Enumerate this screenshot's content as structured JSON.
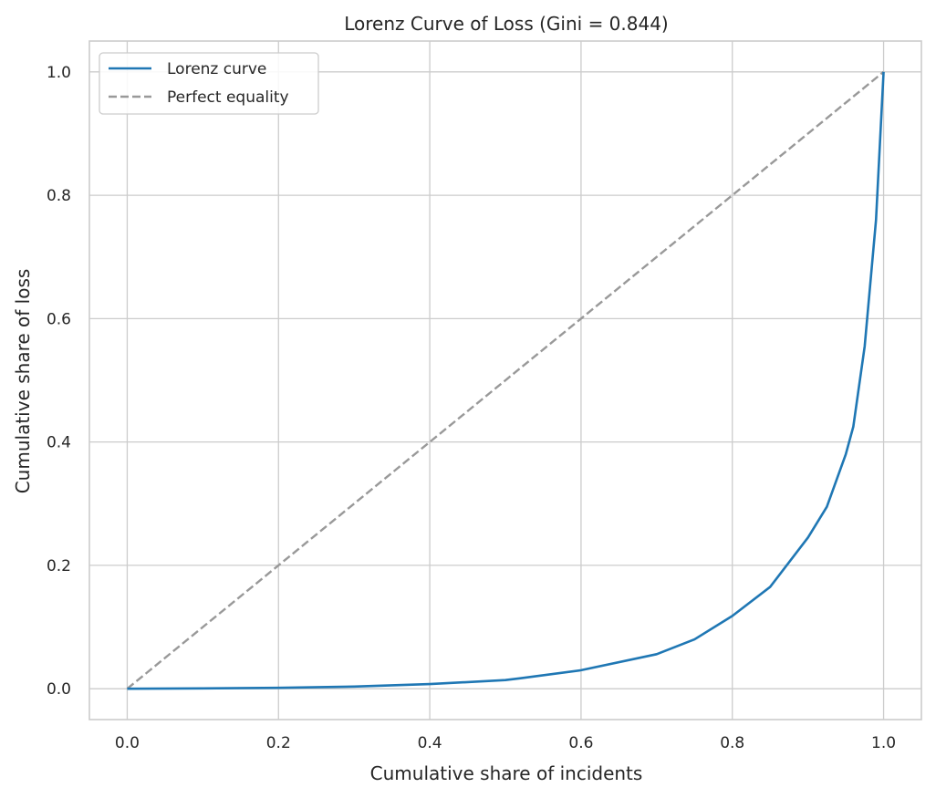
{
  "chart_data": {
    "type": "line",
    "title": "Lorenz Curve of Loss (Gini = 0.844)",
    "xlabel": "Cumulative share of incidents",
    "ylabel": "Cumulative share of loss",
    "xlim": [
      -0.05,
      1.05
    ],
    "ylim": [
      -0.05,
      1.05
    ],
    "xticks": [
      0.0,
      0.2,
      0.4,
      0.6,
      0.8,
      1.0
    ],
    "yticks": [
      0.0,
      0.2,
      0.4,
      0.6,
      0.8,
      1.0
    ],
    "xtick_labels": [
      "0.0",
      "0.2",
      "0.4",
      "0.6",
      "0.8",
      "1.0"
    ],
    "ytick_labels": [
      "0.0",
      "0.2",
      "0.4",
      "0.6",
      "0.8",
      "1.0"
    ],
    "grid": true,
    "legend_position": "top-left",
    "series": [
      {
        "name": "Lorenz curve",
        "color": "#1f77b4",
        "style": "solid",
        "x": [
          0.0,
          0.1,
          0.2,
          0.3,
          0.4,
          0.5,
          0.52,
          0.6,
          0.7,
          0.75,
          0.8,
          0.85,
          0.9,
          0.925,
          0.95,
          0.96,
          0.975,
          0.99,
          1.0
        ],
        "y": [
          0.0,
          0.0005,
          0.0015,
          0.0035,
          0.0075,
          0.014,
          0.017,
          0.03,
          0.056,
          0.08,
          0.118,
          0.165,
          0.245,
          0.295,
          0.38,
          0.425,
          0.555,
          0.76,
          1.0
        ]
      },
      {
        "name": "Perfect equality",
        "color": "#999999",
        "style": "dashed",
        "x": [
          0.0,
          1.0
        ],
        "y": [
          0.0,
          1.0
        ]
      }
    ]
  }
}
